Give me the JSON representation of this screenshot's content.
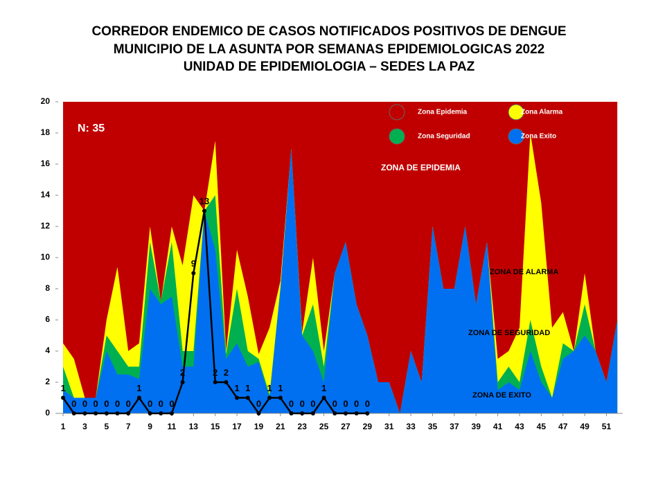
{
  "chart_data": {
    "type": "area",
    "title": [
      "CORREDOR ENDEMICO DE CASOS NOTIFICADOS POSITIVOS DE DENGUE",
      "MUNICIPIO DE LA ASUNTA  POR SEMANAS EPIDEMIOLOGICAS 2022",
      "UNIDAD DE EPIDEMIOLOGIA – SEDES LA PAZ"
    ],
    "x": [
      1,
      2,
      3,
      4,
      5,
      6,
      7,
      8,
      9,
      10,
      11,
      12,
      13,
      14,
      15,
      16,
      17,
      18,
      19,
      20,
      21,
      22,
      23,
      24,
      25,
      26,
      27,
      28,
      29,
      30,
      31,
      32,
      33,
      34,
      35,
      36,
      37,
      38,
      39,
      40,
      41,
      42,
      43,
      44,
      45,
      46,
      47,
      48,
      49,
      50,
      51,
      52
    ],
    "xlim": [
      0.55,
      52.5
    ],
    "xticks": [
      1,
      3,
      5,
      7,
      9,
      11,
      13,
      15,
      17,
      19,
      21,
      23,
      25,
      27,
      29,
      31,
      33,
      35,
      37,
      39,
      41,
      43,
      45,
      47,
      49,
      51
    ],
    "ylim": [
      0,
      20
    ],
    "yticks": [
      0,
      2,
      4,
      6,
      8,
      10,
      12,
      14,
      16,
      18,
      20
    ],
    "series": [
      {
        "name": "Zona Epidemia",
        "color": "#c00000",
        "values": [
          20,
          20,
          20,
          20,
          20,
          20,
          20,
          20,
          20,
          20,
          20,
          20,
          20,
          20,
          20,
          20,
          20,
          20,
          20,
          20,
          20,
          20,
          20,
          20,
          20,
          20,
          20,
          20,
          20,
          20,
          20,
          20,
          20,
          20,
          20,
          20,
          20,
          20,
          20,
          20,
          20,
          20,
          20,
          20,
          20,
          20,
          20,
          20,
          20,
          20,
          20,
          20
        ]
      },
      {
        "name": "Zona Alarma",
        "color": "#ffff00",
        "values": [
          4.5,
          3.5,
          1,
          1,
          6,
          9.4,
          4,
          4.5,
          12,
          7.2,
          12,
          9.5,
          14,
          13,
          17.5,
          4,
          10.5,
          7.5,
          3.8,
          5.5,
          8.5,
          17,
          5.2,
          10,
          4,
          9,
          11,
          7,
          5,
          2,
          2,
          0,
          4,
          2,
          12,
          8,
          8,
          12,
          7,
          11,
          3.5,
          4,
          5.5,
          18,
          13.5,
          5.5,
          6.5,
          4,
          9,
          4,
          2,
          6
        ]
      },
      {
        "name": "Zona Seguridad",
        "color": "#00b050",
        "values": [
          3,
          1,
          1,
          1,
          5,
          4,
          3,
          3,
          11,
          7.2,
          11,
          4,
          4,
          13,
          14,
          3.8,
          8,
          4,
          3.5,
          1.2,
          8,
          17,
          5,
          7,
          3,
          9,
          11,
          7,
          5,
          2,
          2,
          0,
          4,
          2,
          12,
          8,
          8,
          12,
          7,
          11,
          2,
          3,
          2,
          6,
          3,
          1,
          4.5,
          4,
          7,
          4,
          2,
          6
        ]
      },
      {
        "name": "Zona Exito",
        "color": "#0070f0",
        "values": [
          1.5,
          1,
          1,
          1,
          4,
          2.5,
          2.5,
          2.2,
          8,
          7,
          7.5,
          3,
          3,
          13,
          10.5,
          3.5,
          4.5,
          3,
          3.3,
          1,
          8,
          17,
          5,
          4,
          2,
          9,
          11,
          7,
          5,
          2,
          2,
          0,
          4,
          2,
          12,
          8,
          8,
          12,
          7,
          11,
          1.5,
          2,
          1.5,
          4,
          2,
          1,
          3.5,
          4,
          5,
          4,
          2,
          6
        ]
      }
    ],
    "cases": {
      "color": "#000000",
      "values": [
        1,
        0,
        0,
        0,
        0,
        0,
        0,
        1,
        0,
        0,
        0,
        2,
        9,
        13,
        2,
        2,
        1,
        1,
        0,
        1,
        1,
        0,
        0,
        0,
        1,
        0,
        0,
        0,
        0
      ]
    },
    "annotations": [
      "N: 35",
      "ZONA DE EPIDEMIA",
      "ZONA DE ALARMA",
      "ZONA DE  SEGURIDAD",
      "ZONA DE  EXITO"
    ]
  }
}
